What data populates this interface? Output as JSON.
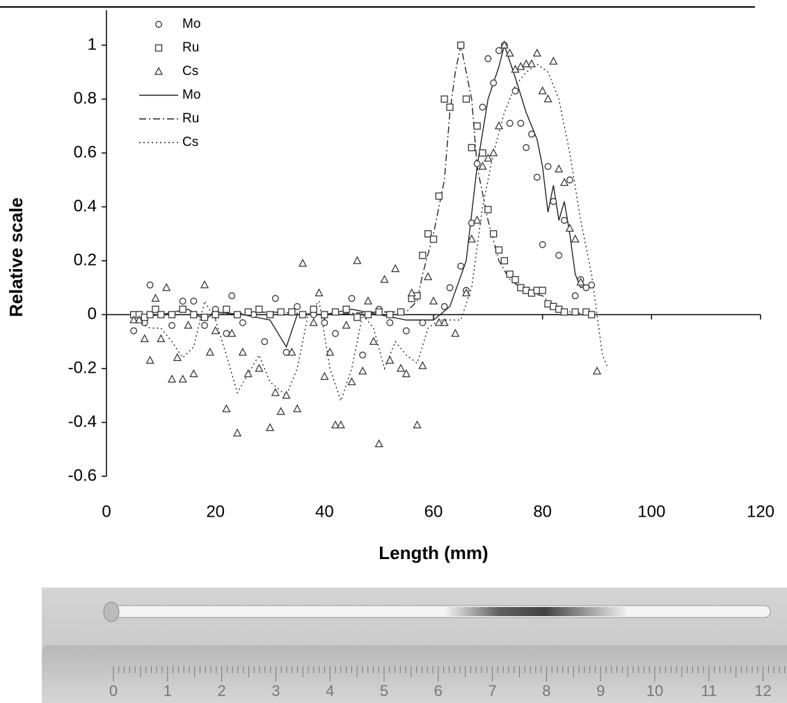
{
  "chart_data": {
    "type": "scatter",
    "x_label": "Length (mm)",
    "y_label": "Relative scale",
    "xlim": [
      0,
      120
    ],
    "xticks": [
      0,
      20,
      40,
      60,
      80,
      100,
      120
    ],
    "ylim": [
      -0.6,
      1.13
    ],
    "yticks": [
      -0.6,
      -0.4,
      -0.2,
      0,
      0.2,
      0.4,
      0.6,
      0.8,
      1
    ],
    "grid": false,
    "legend": "upper left",
    "series": [
      {
        "name": "Mo",
        "color": "#333333",
        "marker": "circle",
        "x": [
          5,
          7,
          8,
          10,
          12,
          14,
          16,
          18,
          20,
          22,
          23,
          25,
          27,
          29,
          31,
          33,
          35,
          38,
          40,
          42,
          45,
          47,
          50,
          52,
          55,
          58,
          62,
          63,
          65,
          66,
          67,
          68,
          69,
          70,
          71,
          72,
          73,
          74,
          75,
          76,
          77,
          78,
          79,
          80,
          81,
          82,
          83,
          84,
          85,
          86,
          87,
          88,
          89
        ],
        "values": [
          -0.06,
          -0.03,
          0.11,
          0.0,
          -0.04,
          0.05,
          0.05,
          -0.04,
          0.02,
          -0.07,
          0.07,
          -0.03,
          0.0,
          -0.1,
          0.06,
          -0.14,
          0.03,
          0.0,
          -0.03,
          -0.07,
          0.06,
          -0.15,
          0.02,
          -0.03,
          -0.06,
          -0.03,
          0.03,
          0.1,
          0.18,
          0.09,
          0.34,
          0.56,
          0.77,
          0.95,
          0.86,
          0.98,
          1.0,
          0.71,
          0.83,
          0.71,
          0.62,
          0.67,
          0.51,
          0.26,
          0.55,
          0.42,
          0.22,
          0.35,
          0.5,
          0.07,
          0.13,
          0.1,
          0.11
        ]
      },
      {
        "name": "Ru",
        "color": "#333333",
        "marker": "square",
        "x": [
          5,
          6,
          7,
          8,
          9,
          10,
          12,
          14,
          16,
          18,
          20,
          22,
          24,
          26,
          28,
          30,
          32,
          34,
          36,
          38,
          40,
          42,
          44,
          46,
          48,
          50,
          52,
          54,
          56,
          57,
          58,
          59,
          60,
          61,
          62,
          63,
          65,
          66,
          67,
          68,
          69,
          70,
          71,
          72,
          73,
          74,
          75,
          76,
          77,
          78,
          79,
          80,
          81,
          82,
          83,
          84,
          86,
          88,
          89
        ],
        "values": [
          0,
          0,
          -0.01,
          0,
          0.02,
          0,
          0,
          0.02,
          0,
          -0.01,
          0,
          0.02,
          0,
          0.01,
          0.02,
          0,
          0.01,
          0.01,
          0,
          0.02,
          0,
          0.01,
          0.02,
          -0.01,
          0,
          0.01,
          0,
          0.01,
          0.06,
          0.07,
          0.22,
          0.3,
          0.28,
          0.44,
          0.8,
          0.77,
          1.0,
          0.8,
          0.62,
          0.7,
          0.6,
          0.39,
          0.3,
          0.24,
          0.2,
          0.15,
          0.13,
          0.1,
          0.09,
          0.08,
          0.09,
          0.09,
          0.04,
          0.03,
          0.02,
          0.01,
          0.01,
          0.01,
          0
        ]
      },
      {
        "name": "Cs",
        "color": "#333333",
        "marker": "triangle",
        "x": [
          5,
          6,
          7,
          8,
          9,
          10,
          11,
          12,
          13,
          14,
          15,
          16,
          18,
          19,
          20,
          22,
          23,
          24,
          25,
          26,
          28,
          30,
          31,
          32,
          33,
          34,
          35,
          36,
          38,
          39,
          40,
          41,
          42,
          43,
          44,
          45,
          46,
          47,
          48,
          49,
          50,
          51,
          52,
          53,
          54,
          55,
          56,
          57,
          58,
          59,
          60,
          61,
          62,
          64,
          66,
          67,
          68,
          69,
          70,
          71,
          72,
          73,
          74,
          75,
          76,
          77,
          78,
          79,
          80,
          81,
          82,
          83,
          84,
          85,
          86,
          87,
          90
        ],
        "values": [
          -0.02,
          -0.02,
          -0.09,
          -0.17,
          0.06,
          -0.09,
          0.1,
          -0.24,
          -0.16,
          -0.24,
          -0.04,
          -0.22,
          0.11,
          -0.14,
          -0.06,
          -0.35,
          -0.07,
          -0.44,
          -0.14,
          -0.22,
          -0.2,
          -0.42,
          -0.29,
          -0.36,
          -0.3,
          -0.14,
          -0.35,
          0.19,
          -0.03,
          0.08,
          -0.23,
          -0.14,
          -0.41,
          -0.41,
          -0.04,
          -0.25,
          0.2,
          -0.21,
          0.05,
          -0.1,
          -0.48,
          0.13,
          -0.17,
          0.17,
          -0.2,
          -0.22,
          0.08,
          -0.41,
          -0.19,
          0.14,
          0.05,
          -0.03,
          -0.03,
          -0.07,
          0.08,
          0.28,
          0.35,
          0.55,
          0.58,
          0.6,
          0.7,
          1.0,
          0.97,
          0.91,
          0.92,
          0.93,
          0.93,
          0.97,
          0.83,
          0.8,
          0.94,
          0.54,
          0.49,
          0.32,
          0.28,
          0.12,
          -0.21
        ]
      },
      {
        "name": "Mo",
        "color": "#222222",
        "line_style": "solid",
        "x": [
          5,
          10,
          15,
          18,
          20,
          25,
          30,
          33,
          35,
          40,
          45,
          50,
          55,
          60,
          63,
          66,
          68,
          70,
          72,
          73,
          75,
          77,
          79,
          80,
          81,
          82,
          83,
          84,
          85,
          86,
          87,
          88
        ],
        "values": [
          -0.01,
          0,
          0.02,
          -0.02,
          0.01,
          0,
          -0.02,
          -0.12,
          0,
          0,
          0.02,
          0,
          -0.02,
          -0.02,
          0.03,
          0.2,
          0.55,
          0.8,
          0.92,
          1.0,
          0.88,
          0.75,
          0.65,
          0.55,
          0.38,
          0.48,
          0.35,
          0.42,
          0.3,
          0.15,
          0.1,
          0.11
        ]
      },
      {
        "name": "Ru",
        "color": "#222222",
        "line_style": "dash-dot",
        "x": [
          5,
          20,
          30,
          40,
          50,
          55,
          57,
          58,
          60,
          62,
          63,
          64,
          65,
          66,
          67,
          68,
          70,
          72,
          74,
          76,
          78,
          80,
          82,
          85,
          89
        ],
        "values": [
          0,
          0,
          0.01,
          0,
          0.01,
          0.01,
          0.05,
          0.15,
          0.3,
          0.5,
          0.75,
          0.9,
          1.0,
          0.9,
          0.8,
          0.55,
          0.35,
          0.2,
          0.13,
          0.1,
          0.08,
          0.07,
          0.03,
          0.01,
          0
        ]
      },
      {
        "name": "Cs",
        "color": "#222222",
        "line_style": "dotted",
        "x": [
          5,
          8,
          10,
          12,
          14,
          16,
          18,
          20,
          22,
          24,
          26,
          28,
          30,
          33,
          35,
          37,
          39,
          41,
          43,
          45,
          47,
          49,
          51,
          53,
          55,
          57,
          59,
          61,
          63,
          65,
          67,
          69,
          71,
          73,
          75,
          77,
          79,
          81,
          83,
          85,
          87,
          89,
          90,
          91,
          92
        ],
        "values": [
          -0.02,
          -0.05,
          -0.05,
          -0.1,
          -0.16,
          -0.12,
          0.05,
          -0.02,
          -0.15,
          -0.29,
          -0.22,
          -0.15,
          -0.25,
          -0.3,
          -0.2,
          0,
          0.05,
          -0.2,
          -0.32,
          -0.2,
          0,
          -0.05,
          -0.2,
          -0.1,
          -0.15,
          -0.18,
          -0.05,
          -0.02,
          -0.02,
          -0.02,
          0.1,
          0.4,
          0.6,
          0.75,
          0.85,
          0.9,
          0.93,
          0.9,
          0.8,
          0.6,
          0.35,
          0.15,
          0,
          -0.15,
          -0.2
        ]
      }
    ]
  },
  "photo": {
    "ruler_labels": [
      "0",
      "1",
      "2",
      "3",
      "4",
      "5",
      "6",
      "7",
      "8",
      "9",
      "10",
      "11",
      "12"
    ]
  }
}
